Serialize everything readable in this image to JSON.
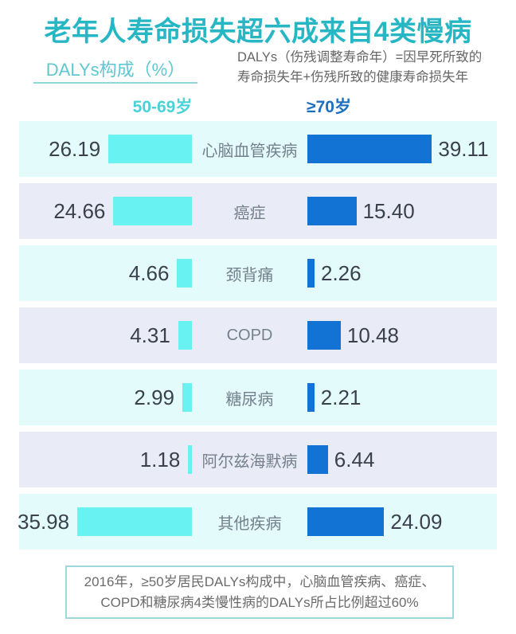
{
  "title": "老年人寿命损失超六成来自4类慢病",
  "axis_label": "DALYs构成（%）",
  "definition": {
    "line1": "DALYs（伤残调整寿命年）=因早死所致的",
    "line2": "寿命损失年+伤残所致的健康寿命损失年"
  },
  "chart_data": {
    "type": "bar",
    "orientation": "horizontal-diverging",
    "unit": "%",
    "title": "老年人寿命损失超六成来自4类慢病",
    "xlabel": "DALYs构成（%）",
    "categories": [
      "心脑血管疾病",
      "癌症",
      "颈背痛",
      "COPD",
      "糖尿病",
      "阿尔兹海默病",
      "其他疾病"
    ],
    "series": [
      {
        "name": "50-69岁",
        "color": "#69f2f2",
        "values": [
          26.19,
          24.66,
          4.66,
          4.31,
          2.99,
          1.18,
          35.98
        ]
      },
      {
        "name": "≥70岁",
        "color": "#1273d4",
        "values": [
          39.11,
          15.4,
          2.26,
          10.48,
          2.21,
          6.44,
          24.09
        ]
      }
    ],
    "xlim": [
      0,
      40
    ],
    "value_decimals": 2,
    "grid": false,
    "legend_position": "top"
  },
  "footnote": {
    "line1": "2016年，≥50岁居民DALYs构成中，心脑血管疾病、癌症、",
    "line2": "COPD和糖尿病4类慢性病的DALYs所占比例超过60%"
  },
  "colors": {
    "title": "#27b6c4",
    "axis_label": "#5ec7d0",
    "underline": "#8ed8dc",
    "header_left": "#49d2d8",
    "header_right": "#1b6fc0",
    "bar_left": "#69f2f2",
    "bar_right": "#1273d4",
    "row_bg_a": "#e4fbfc",
    "row_bg_b": "#e9ecf6",
    "value_text": "#3a414c",
    "label_text": "#74808d",
    "footnote_text": "#6b6b6b",
    "footnote_border": "#9fd8dc"
  }
}
